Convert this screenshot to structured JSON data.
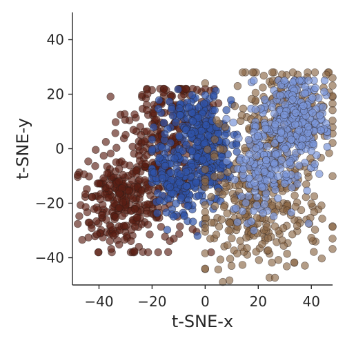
{
  "chart_data": {
    "type": "scatter",
    "title": "",
    "xlabel": "t-SNE-x",
    "ylabel": "t-SNE-y",
    "xlim": [
      -50,
      48
    ],
    "ylim": [
      -50,
      50
    ],
    "x_ticks": [
      -40,
      -20,
      0,
      20,
      40
    ],
    "y_ticks": [
      -40,
      -20,
      0,
      20,
      40
    ],
    "x_tick_labels": [
      "−40",
      "−20",
      "0",
      "20",
      "40"
    ],
    "y_tick_labels": [
      "−40",
      "−20",
      "0",
      "20",
      "40"
    ],
    "grid": false,
    "legend": "none",
    "series": [
      {
        "color": "#5a1f14",
        "alpha": 0.65,
        "point_count": 520,
        "clusters": [
          {
            "cx": -33,
            "cy": -20,
            "sx": 7,
            "sy": 9,
            "weight": 0.42
          },
          {
            "cx": -18,
            "cy": -8,
            "sx": 9,
            "sy": 14,
            "weight": 0.38
          },
          {
            "cx": -10,
            "cy": 12,
            "sx": 9,
            "sy": 7,
            "weight": 0.2
          }
        ],
        "x_range": [
          -48,
          5
        ],
        "y_range": [
          -38,
          22
        ]
      },
      {
        "color": "#2f52a8",
        "alpha": 0.7,
        "point_count": 460,
        "clusters": [
          {
            "cx": 0,
            "cy": -2,
            "sx": 5,
            "sy": 9,
            "weight": 0.55
          },
          {
            "cx": -12,
            "cy": -12,
            "sx": 5,
            "sy": 8,
            "weight": 0.3
          },
          {
            "cx": -6,
            "cy": 13,
            "sx": 6,
            "sy": 4,
            "weight": 0.15
          }
        ],
        "x_range": [
          -20,
          12
        ],
        "y_range": [
          -32,
          22
        ]
      },
      {
        "color": "#8a6745",
        "alpha": 0.65,
        "point_count": 480,
        "clusters": [
          {
            "cx": 20,
            "cy": -25,
            "sx": 12,
            "sy": 11,
            "weight": 0.55
          },
          {
            "cx": 30,
            "cy": 10,
            "sx": 10,
            "sy": 11,
            "weight": 0.45
          }
        ],
        "x_range": [
          0,
          48
        ],
        "y_range": [
          -50,
          28
        ]
      },
      {
        "color": "#7b95d8",
        "alpha": 0.7,
        "point_count": 430,
        "clusters": [
          {
            "cx": 33,
            "cy": 10,
            "sx": 6,
            "sy": 9,
            "weight": 0.7
          },
          {
            "cx": 22,
            "cy": -8,
            "sx": 6,
            "sy": 9,
            "weight": 0.3
          }
        ],
        "x_range": [
          8,
          46
        ],
        "y_range": [
          -30,
          25
        ]
      }
    ]
  }
}
